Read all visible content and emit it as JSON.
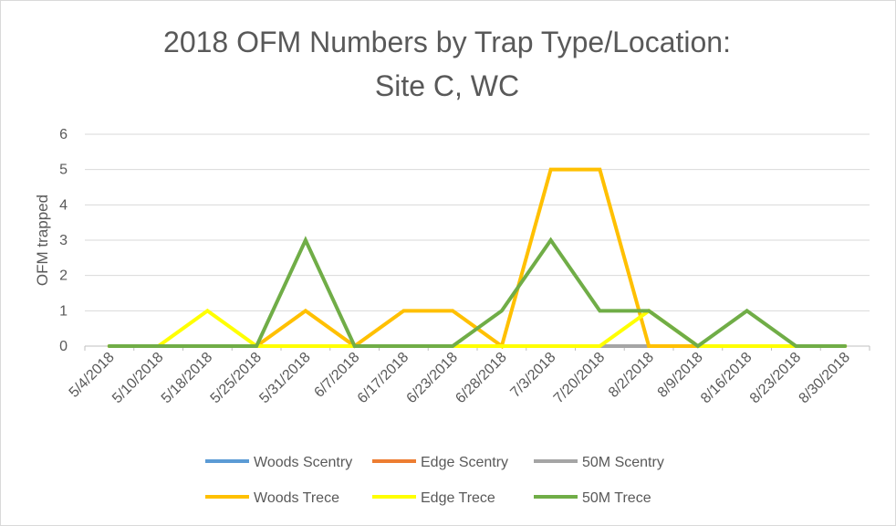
{
  "chart_data": {
    "type": "line",
    "title_line1": "2018 OFM Numbers by Trap Type/Location:",
    "title_line2": "Site C, WC",
    "ylabel": "OFM trapped",
    "xlabel": "",
    "ylim": [
      0,
      6
    ],
    "yticks": [
      0,
      1,
      2,
      3,
      4,
      5,
      6
    ],
    "grid": true,
    "legend_position": "bottom",
    "categories": [
      "5/4/2018",
      "5/10/2018",
      "5/18/2018",
      "5/25/2018",
      "5/31/2018",
      "6/7/2018",
      "6/17/2018",
      "6/23/2018",
      "6/28/2018",
      "7/3/2018",
      "7/20/2018",
      "8/2/2018",
      "8/9/2018",
      "8/16/2018",
      "8/23/2018",
      "8/30/2018"
    ],
    "series": [
      {
        "name": "Woods Scentry",
        "color": "#5b9bd5",
        "values": [
          0,
          0,
          0,
          0,
          0,
          0,
          0,
          0,
          0,
          0,
          0,
          0,
          0,
          0,
          0,
          0
        ]
      },
      {
        "name": "Edge Scentry",
        "color": "#ed7d31",
        "values": [
          0,
          0,
          0,
          0,
          0,
          0,
          0,
          0,
          0,
          0,
          0,
          0,
          0,
          0,
          0,
          0
        ]
      },
      {
        "name": "50M Scentry",
        "color": "#a5a5a5",
        "values": [
          0,
          0,
          0,
          0,
          0,
          0,
          0,
          0,
          0,
          0,
          0,
          0,
          0,
          0,
          0,
          0
        ]
      },
      {
        "name": "Woods Trece",
        "color": "#ffc000",
        "values": [
          0,
          0,
          0,
          0,
          1,
          0,
          1,
          1,
          0,
          5,
          5,
          0,
          0,
          0,
          0,
          0
        ]
      },
      {
        "name": "Edge Trece",
        "color": "#ffff00",
        "values": [
          0,
          0,
          1,
          0,
          0,
          0,
          0,
          0,
          0,
          0,
          0,
          1,
          0,
          0,
          0,
          0
        ]
      },
      {
        "name": "50M Trece",
        "color": "#70ad47",
        "values": [
          0,
          0,
          0,
          0,
          3,
          0,
          0,
          0,
          1,
          3,
          1,
          1,
          0,
          1,
          0,
          0
        ]
      }
    ]
  }
}
